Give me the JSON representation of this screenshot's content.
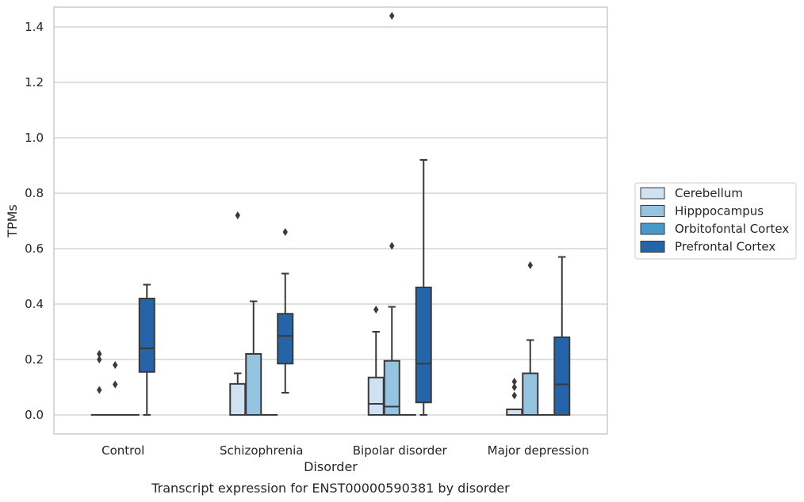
{
  "chart_data": {
    "type": "box",
    "xlabel": "Disorder",
    "ylabel": "TPMs",
    "caption": "Transcript expression for ENST00000590381 by disorder",
    "ylim": [
      -0.07,
      1.52
    ],
    "yticks": [
      0.0,
      0.2,
      0.4,
      0.6,
      0.8,
      1.0,
      1.2,
      1.4
    ],
    "ytick_labels": [
      "0.0",
      "0.2",
      "0.4",
      "0.6",
      "0.8",
      "1.0",
      "1.2",
      "1.4"
    ],
    "grid": "horizontal",
    "legend_position": "right",
    "categories": [
      "Control",
      "Schizophrenia",
      "Bipolar disorder",
      "Major depression"
    ],
    "series": [
      {
        "name": "Cerebellum",
        "color": "#d0e1f2",
        "boxes": [
          {
            "whislo": 0.0,
            "q1": 0.0,
            "med": 0.0,
            "q3": 0.0,
            "whishi": 0.0,
            "fliers": [
              0.22,
              0.2,
              0.09
            ]
          },
          {
            "whislo": 0.0,
            "q1": 0.0,
            "med": 0.0,
            "q3": 0.112,
            "whishi": 0.15,
            "fliers": [
              0.72
            ]
          },
          {
            "whislo": 0.0,
            "q1": 0.0,
            "med": 0.04,
            "q3": 0.135,
            "whishi": 0.3,
            "fliers": [
              0.38
            ]
          },
          {
            "whislo": 0.0,
            "q1": 0.0,
            "med": 0.0,
            "q3": 0.02,
            "whishi": 0.02,
            "fliers": [
              0.12,
              0.1,
              0.07
            ]
          }
        ]
      },
      {
        "name": "Hipppocampus",
        "color": "#94c4df",
        "boxes": [
          {
            "whislo": 0.0,
            "q1": 0.0,
            "med": 0.0,
            "q3": 0.0,
            "whishi": 0.0,
            "fliers": [
              0.18,
              0.11
            ]
          },
          {
            "whislo": 0.0,
            "q1": 0.0,
            "med": 0.0,
            "q3": 0.22,
            "whishi": 0.41,
            "fliers": []
          },
          {
            "whislo": 0.0,
            "q1": 0.0,
            "med": 0.03,
            "q3": 0.195,
            "whishi": 0.39,
            "fliers": [
              1.44,
              0.61
            ]
          },
          {
            "whislo": 0.0,
            "q1": 0.0,
            "med": 0.0,
            "q3": 0.15,
            "whishi": 0.27,
            "fliers": [
              0.54
            ]
          }
        ]
      },
      {
        "name": "Orbitofontal Cortex",
        "color": "#4a98c9",
        "boxes": [
          {
            "whislo": 0.0,
            "q1": 0.0,
            "med": 0.0,
            "q3": 0.0,
            "whishi": 0.0,
            "fliers": []
          },
          {
            "whislo": 0.0,
            "q1": 0.0,
            "med": 0.0,
            "q3": 0.0,
            "whishi": 0.0,
            "fliers": []
          },
          {
            "whislo": 0.0,
            "q1": 0.0,
            "med": 0.0,
            "q3": 0.0,
            "whishi": 0.0,
            "fliers": []
          },
          {
            "whislo": 0.0,
            "q1": 0.0,
            "med": 0.0,
            "q3": 0.0,
            "whishi": 0.0,
            "fliers": []
          }
        ]
      },
      {
        "name": "Prefrontal Cortex",
        "color": "#2464a8",
        "boxes": [
          {
            "whislo": 0.0,
            "q1": 0.155,
            "med": 0.24,
            "q3": 0.42,
            "whishi": 0.47,
            "fliers": []
          },
          {
            "whislo": 0.08,
            "q1": 0.185,
            "med": 0.285,
            "q3": 0.365,
            "whishi": 0.51,
            "fliers": [
              0.66
            ]
          },
          {
            "whislo": 0.0,
            "q1": 0.045,
            "med": 0.185,
            "q3": 0.46,
            "whishi": 0.92,
            "fliers": []
          },
          {
            "whislo": 0.0,
            "q1": 0.0,
            "med": 0.11,
            "q3": 0.28,
            "whishi": 0.57,
            "fliers": []
          }
        ]
      }
    ]
  }
}
